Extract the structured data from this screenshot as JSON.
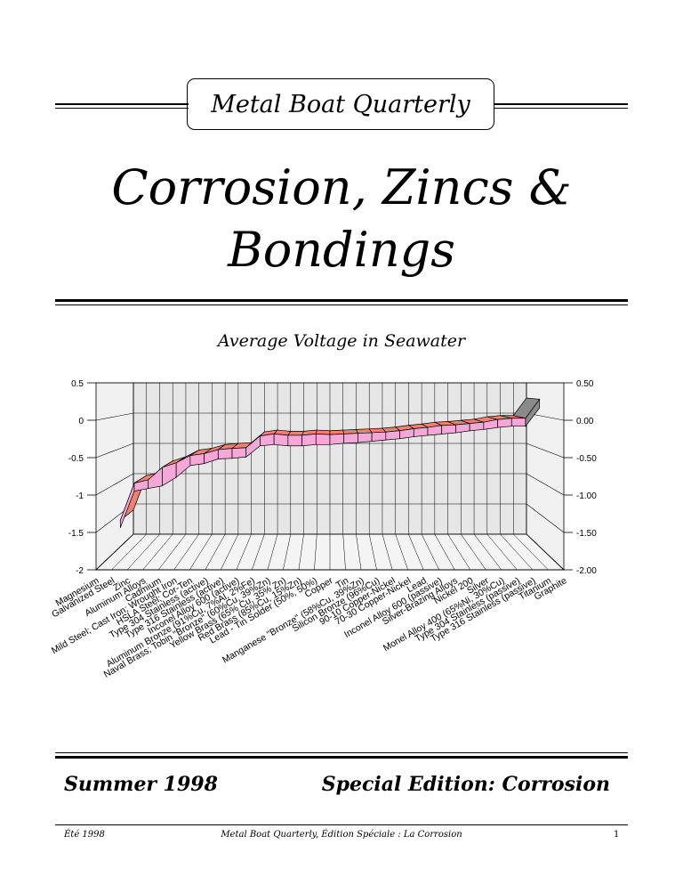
{
  "masthead": {
    "title": "Metal Boat Quarterly"
  },
  "title": {
    "line1": "Corrosion, Zincs &",
    "line2": "Bondings"
  },
  "chart_data": {
    "type": "area",
    "title": "Average Voltage in Seawater",
    "ylim": [
      -2,
      0.5
    ],
    "y_ticks_left": [
      "0.5",
      "0",
      "-0.5",
      "-1",
      "-1.5",
      "-2"
    ],
    "y_ticks_right": [
      "0.50",
      "0.00",
      "-0.50",
      "-1.00",
      "-1.50",
      "-2.00"
    ],
    "categories": [
      "Magnesium",
      "Galvanized Steel",
      "Zinc",
      "Aluminum Alloys",
      "Cadmium",
      "Mild Steel;  Cast Iron;  Wrought Iron",
      "HSLA Steel;  Cor-Ten",
      "Type 304 Stainless (active)",
      "Type 316 Stainless (active)",
      "Inconel Alloy 600 (active)",
      "Aluminum Bronze (91%Cu, 7%Al, 2%Fe)",
      "Naval Brass;  Tobin \"Bronze\" (60%Cu, 39%Zn)",
      "Yellow Brass (65% Cu, 35% Zn)",
      "Red Brass (85%Cu, 15%Zn)",
      "Lead - Tin Solder  (50%, 50%)",
      "Copper",
      "Tin",
      "Manganese \"Bronze\" (58%Cu, 39%Zn)",
      "Silicon Bronze  (96%Cu)",
      "90-10 Copper-Nickel",
      "70-30 Copper-Nickel",
      "Lead",
      "Inconel Alloy 600 (passive)",
      "Silver-Brazing Alloys",
      "Nickel 200",
      "Silver",
      "Monel Alloy 400 (65%Ni, 30%Cu)",
      "Type 304 Stainless (passive)",
      "Type 316 Stainless (passive)",
      "Titanium",
      "Graphite"
    ],
    "series": [
      {
        "values_max": [
          -1.6,
          -1.03,
          -0.98,
          -0.79,
          -0.72,
          -0.61,
          -0.58,
          -0.52,
          -0.5,
          -0.49,
          -0.31,
          -0.28,
          -0.3,
          -0.3,
          -0.28,
          -0.29,
          -0.28,
          -0.27,
          -0.26,
          -0.25,
          -0.23,
          -0.2,
          -0.18,
          -0.15,
          -0.14,
          -0.12,
          -0.1,
          -0.06,
          -0.04,
          -0.04,
          0.25
        ]
      },
      {
        "values_min": [
          -1.63,
          -1.07,
          -1.03,
          -0.99,
          -0.86,
          -0.68,
          -0.65,
          -0.58,
          -0.57,
          -0.55,
          -0.38,
          -0.36,
          -0.38,
          -0.38,
          -0.36,
          -0.36,
          -0.34,
          -0.33,
          -0.31,
          -0.29,
          -0.27,
          -0.24,
          -0.22,
          -0.2,
          -0.18,
          -0.15,
          -0.13,
          -0.1,
          -0.08,
          -0.08,
          0.2
        ]
      }
    ],
    "colors": {
      "band_top": "#f08070",
      "band_front": "#f5a8d8",
      "graphite": "#8a8a8a",
      "wall": "#e6e6e6"
    },
    "grid": true
  },
  "footer": {
    "left": "Summer 1998",
    "right": "Special Edition: Corrosion",
    "small_left": "Été 1998",
    "small_center": "Metal Boat Quarterly, Édition Spéciale : La Corrosion",
    "page": "1"
  }
}
